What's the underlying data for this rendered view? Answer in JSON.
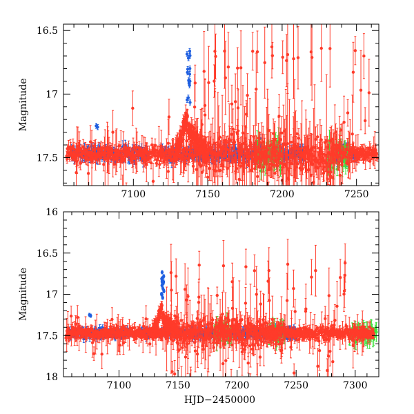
{
  "chart_data": [
    {
      "type": "scatter",
      "panel": "top",
      "title": "",
      "xlabel": "",
      "ylabel": "Magnitude",
      "xlim": [
        7053,
        7265
      ],
      "ylim": [
        17.72,
        16.45
      ],
      "y_inverted": true,
      "x_major_ticks": [
        7100,
        7150,
        7200,
        7250
      ],
      "x_tick_labels": [
        "7100",
        "7150",
        "7200",
        "7250"
      ],
      "y_major_ticks": [
        16.5,
        17,
        17.5
      ],
      "y_tick_labels": [
        "16.5",
        "17",
        "17.5"
      ],
      "baseline_magnitude": 17.47,
      "series": [
        {
          "name": "blue",
          "color": "#1f5fe0"
        },
        {
          "name": "green",
          "color": "#3fe23f"
        },
        {
          "name": "red",
          "color": "#ff3b2a"
        }
      ],
      "features": [
        {
          "description": "outburst peak",
          "x": 7137,
          "y": 16.63,
          "series": "blue"
        },
        {
          "description": "secondary rise",
          "x": 7133,
          "y": 17.28,
          "series": "red"
        },
        {
          "description": "brightening",
          "x": 7075,
          "y": 17.25,
          "series": "blue"
        }
      ]
    },
    {
      "type": "scatter",
      "panel": "bottom",
      "title": "",
      "xlabel": "HJD−2450000",
      "ylabel": "Magnitude",
      "xlim": [
        7053,
        7320
      ],
      "ylim": [
        18.0,
        16.0
      ],
      "y_inverted": true,
      "x_major_ticks": [
        7100,
        7150,
        7200,
        7250,
        7300
      ],
      "x_tick_labels": [
        "7100",
        "7150",
        "7200",
        "7250",
        "7300"
      ],
      "y_major_ticks": [
        16,
        16.5,
        17,
        17.5,
        18
      ],
      "y_tick_labels": [
        "16",
        "16.5",
        "17",
        "17.5",
        "18"
      ],
      "baseline_magnitude": 17.47,
      "series": [
        {
          "name": "blue",
          "color": "#1f5fe0"
        },
        {
          "name": "green",
          "color": "#3fe23f"
        },
        {
          "name": "red",
          "color": "#ff3b2a"
        }
      ],
      "features": [
        {
          "description": "outburst peak",
          "x": 7137,
          "y": 16.63,
          "series": "blue"
        },
        {
          "description": "brightening",
          "x": 7075,
          "y": 17.25,
          "series": "blue"
        }
      ]
    }
  ]
}
